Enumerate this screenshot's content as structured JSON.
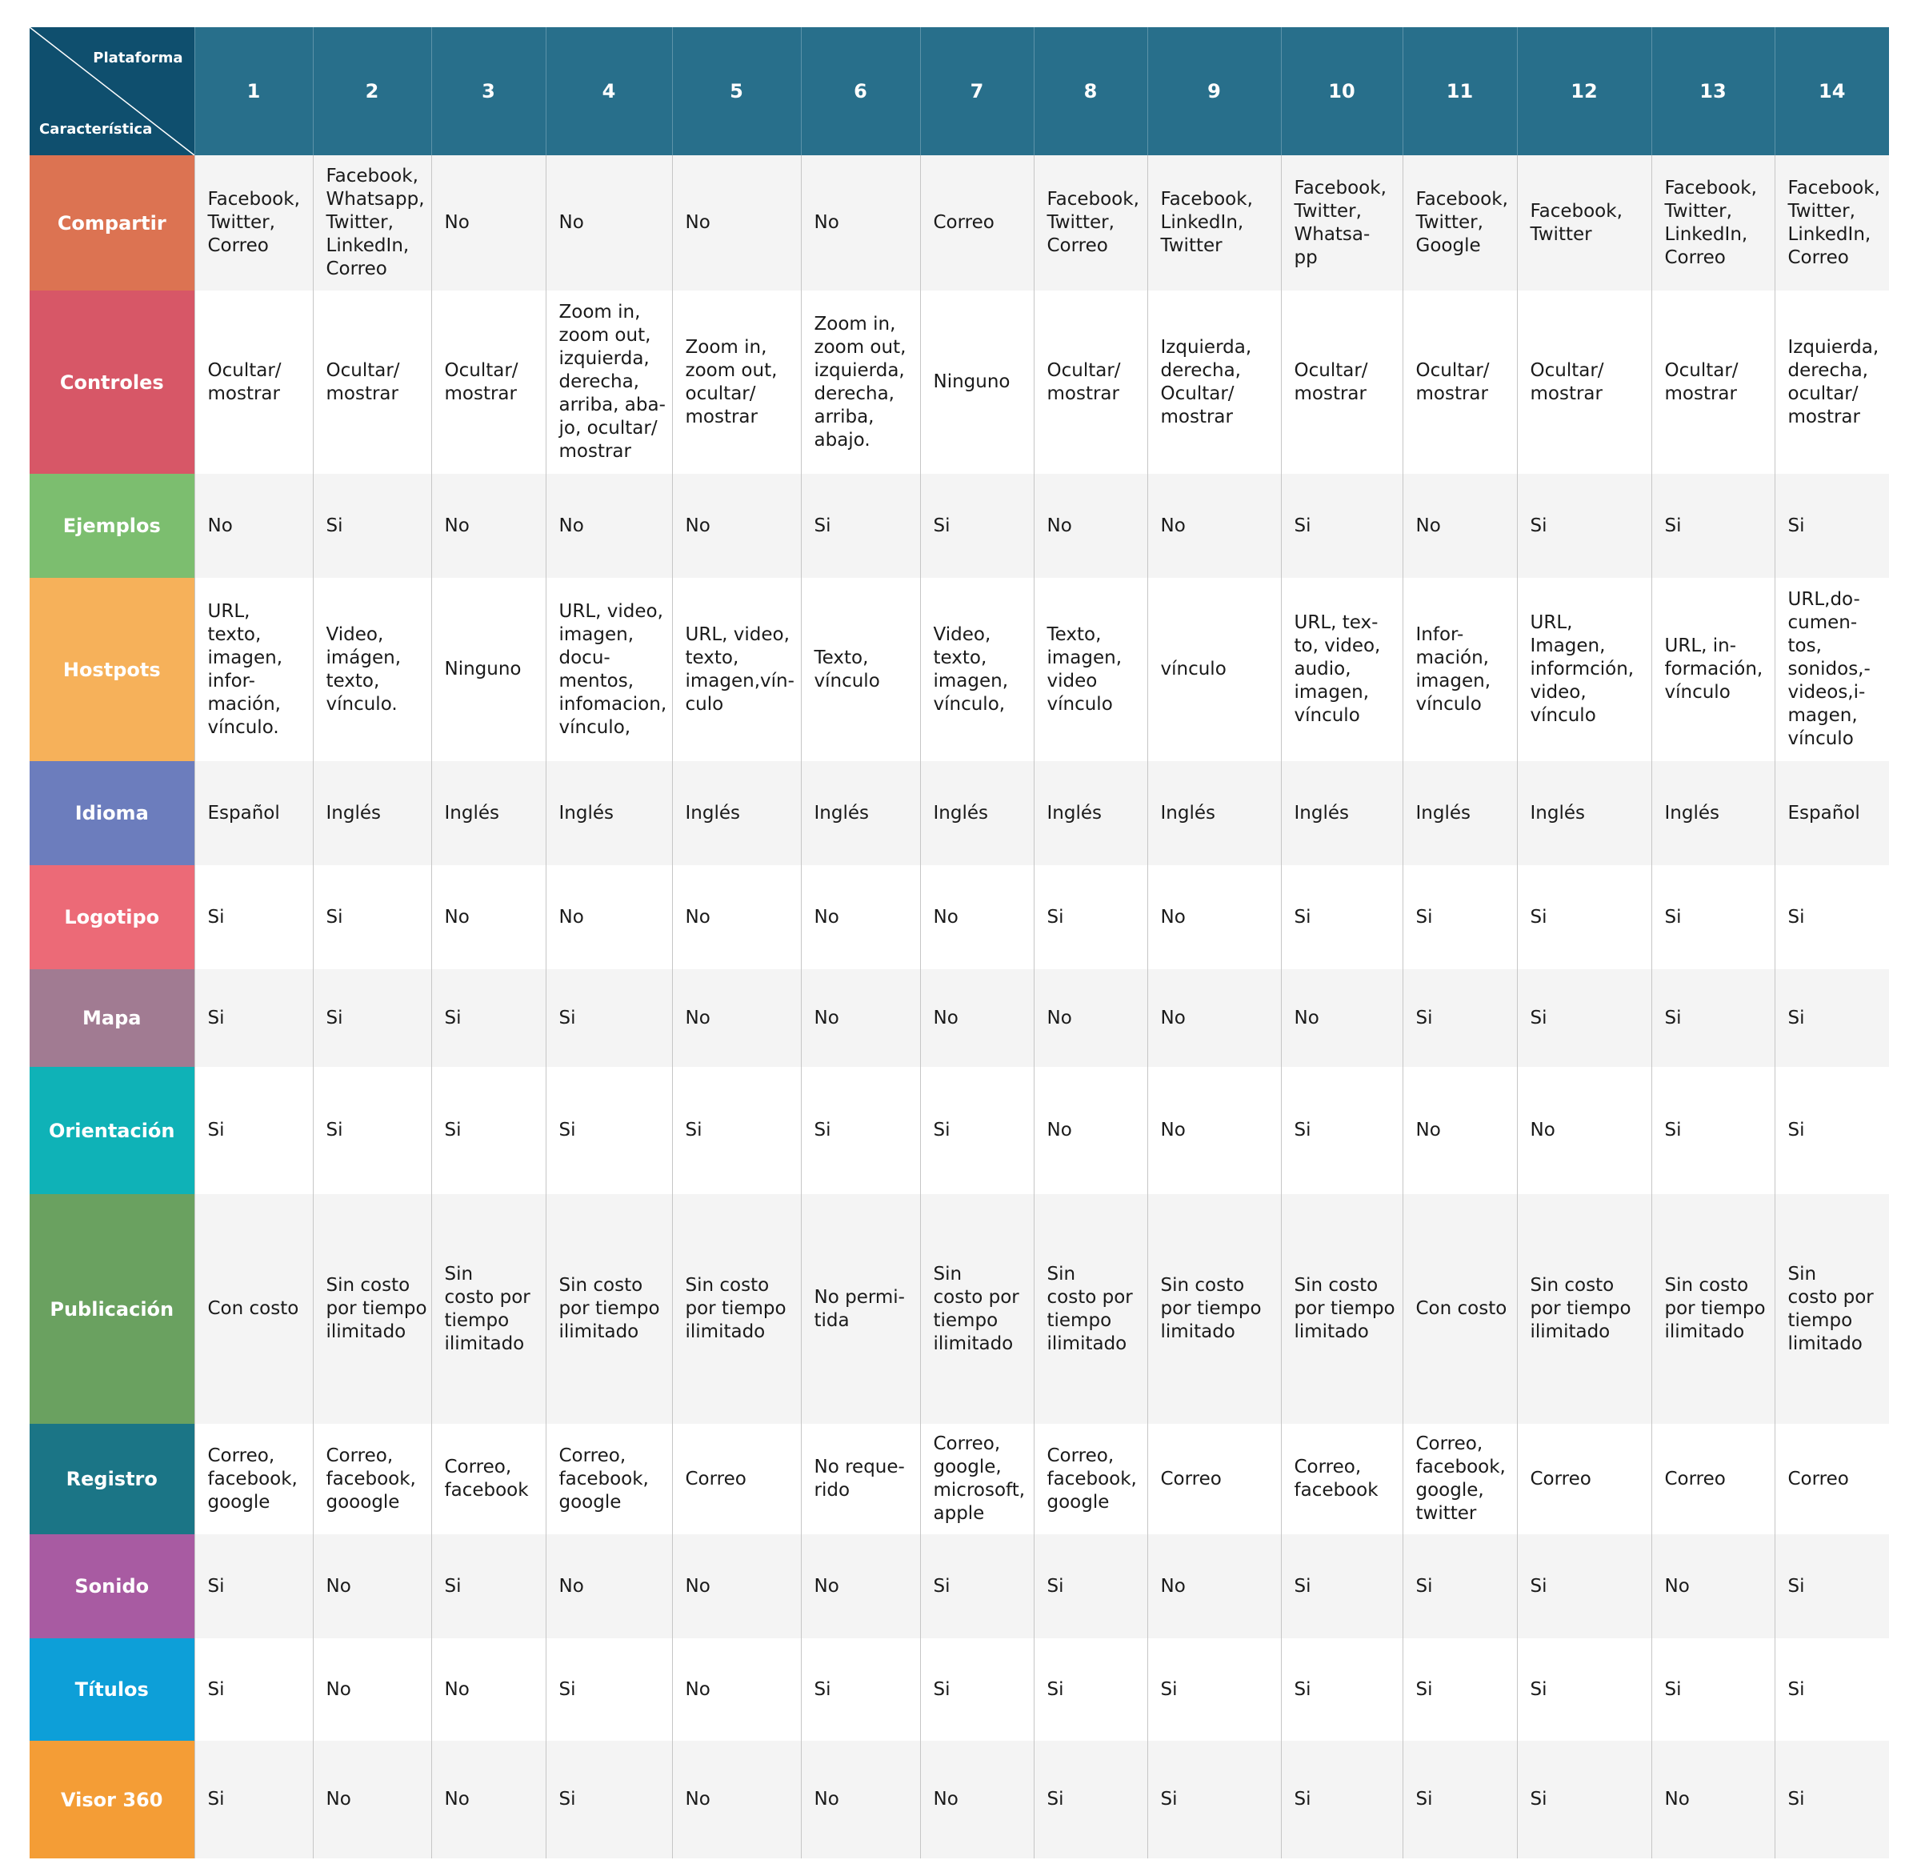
{
  "header": {
    "corner_top": "Plataforma",
    "corner_bottom": "Característica",
    "columns": [
      "1",
      "2",
      "3",
      "4",
      "5",
      "6",
      "7",
      "8",
      "9",
      "10",
      "11",
      "12",
      "13",
      "14"
    ]
  },
  "colors": {
    "header_bg": "#286f8b",
    "corner_bg": "#0f4f6e",
    "row_alt_bg": "#f4f4f4"
  },
  "rows": [
    {
      "label": "Compartir",
      "color": "#dc7352",
      "cells": [
        "Facebook,\nTwitter,\nCorreo",
        "Facebook,\nWhatsapp,\nTwitter,\nLinkedIn,\nCorreo",
        "No",
        "No",
        "No",
        "No",
        "Correo",
        "Facebook,\nTwitter,\nCorreo",
        "Facebook,\nLinkedIn,\nTwitter",
        "Facebook,\nTwitter,\nWhatsa-\npp",
        "Facebook,\nTwitter,\nGoogle",
        "Facebook,\nTwitter",
        "Facebook,\nTwitter,\nLinkedIn,\nCorreo",
        "Facebook,\nTwitter,\nLinkedIn,\nCorreo"
      ]
    },
    {
      "label": "Controles",
      "color": "#d75767",
      "cells": [
        "Ocultar/\nmostrar",
        "Ocultar/\nmostrar",
        "Ocultar/\nmostrar",
        "Zoom in,\nzoom out,\nizquierda,\nderecha,\narriba, aba-\njo, ocultar/\nmostrar",
        "Zoom in,\nzoom out,\nocultar/\nmostrar",
        "Zoom in,\nzoom out,\nizquierda,\nderecha,\narriba,\nabajo.",
        "Ninguno",
        "Ocultar/\nmostrar",
        "Izquierda,\nderecha,\nOcultar/\nmostrar",
        "Ocultar/\nmostrar",
        "Ocultar/\nmostrar",
        "Ocultar/\nmostrar",
        "Ocultar/\nmostrar",
        "Izquierda,\nderecha,\nocultar/\nmostrar"
      ]
    },
    {
      "label": "Ejemplos",
      "color": "#7cbe6f",
      "cells": [
        "No",
        "Si",
        "No",
        "No",
        "No",
        "Si",
        "Si",
        "No",
        "No",
        "Si",
        "No",
        "Si",
        "Si",
        "Si"
      ]
    },
    {
      "label": "Hostpots",
      "color": "#f6b15a",
      "cells": [
        "URL,\ntexto,\nimagen,\ninfor-\nmación,\nvínculo.",
        "Video,\nimágen,\ntexto,\nvínculo.",
        "Ninguno",
        "URL, video,\nimagen,\ndocu-\nmentos,\ninfomacion,\nvínculo,",
        "URL, video,\ntexto,\nimagen,vín-\nculo",
        "Texto,\nvínculo",
        "Video,\ntexto,\nimagen,\nvínculo,",
        "Texto,\nimagen,\nvideo\nvínculo",
        "vínculo",
        "URL, tex-\nto, video,\naudio,\nimagen,\nvínculo",
        "Infor-\nmación,\nimagen,\nvínculo",
        "URL,\nImagen,\ninformción,\nvideo,\nvínculo",
        "URL, in-\nformación,\nvínculo",
        "URL,do-\ncumen-\ntos,\nsonidos,-\nvideos,i-\nmagen,\nvínculo"
      ]
    },
    {
      "label": "Idioma",
      "color": "#6c7dbd",
      "cells": [
        "Español",
        "Inglés",
        "Inglés",
        "Inglés",
        "Inglés",
        "Inglés",
        "Inglés",
        "Inglés",
        "Inglés",
        "Inglés",
        "Inglés",
        "Inglés",
        "Inglés",
        "Español"
      ]
    },
    {
      "label": "Logotipo",
      "color": "#ec6a77",
      "cells": [
        "Si",
        "Si",
        "No",
        "No",
        "No",
        "No",
        "No",
        "Si",
        "No",
        "Si",
        "Si",
        "Si",
        "Si",
        "Si"
      ]
    },
    {
      "label": "Mapa",
      "color": "#a17b92",
      "cells": [
        "Si",
        "Si",
        "Si",
        "Si",
        "No",
        "No",
        "No",
        "No",
        "No",
        "No",
        "Si",
        "Si",
        "Si",
        "Si"
      ]
    },
    {
      "label": "Orientación",
      "color": "#0fb2b7",
      "cells": [
        "Si",
        "Si",
        "Si",
        "Si",
        "Si",
        "Si",
        "Si",
        "No",
        "No",
        "Si",
        "No",
        "No",
        "Si",
        "Si"
      ]
    },
    {
      "label": "Publicación",
      "color": "#6aa160",
      "cells": [
        "Con costo",
        "Sin costo\npor tiempo\nilimitado",
        "Sin\ncosto por\ntiempo\nilimitado",
        "Sin costo\npor tiempo\nilimitado",
        "Sin costo\npor tiempo\nilimitado",
        "No permi-\ntida",
        "Sin\ncosto por\ntiempo\nilimitado",
        "Sin\ncosto por\ntiempo\nilimitado",
        "Sin costo\npor tiempo\nlimitado",
        "Sin costo\npor tiempo\nlimitado",
        "Con costo",
        "Sin costo\npor tiempo\nilimitado",
        "Sin costo\npor tiempo\nilimitado",
        "Sin\ncosto por\ntiempo\nlimitado"
      ]
    },
    {
      "label": "Registro",
      "color": "#1b7586",
      "cells": [
        "Correo,\nfacebook,\ngoogle",
        "Correo,\nfacebook,\ngooogle",
        "Correo,\nfacebook",
        "Correo,\nfacebook,\ngoogle",
        "Correo",
        "No reque-\nrido",
        "Correo,\ngoogle,\nmicrosoft,\napple",
        "Correo,\nfacebook,\ngoogle",
        "Correo",
        "Correo,\nfacebook",
        "Correo,\nfacebook,\ngoogle,\ntwitter",
        "Correo",
        "Correo",
        "Correo"
      ]
    },
    {
      "label": "Sonido",
      "color": "#a85ba2",
      "cells": [
        "Si",
        "No",
        "Si",
        "No",
        "No",
        "No",
        "Si",
        "Si",
        "No",
        "Si",
        "Si",
        "Si",
        "No",
        "Si"
      ]
    },
    {
      "label": "Títulos",
      "color": "#0d9fd8",
      "cells": [
        "Si",
        "No",
        "No",
        "Si",
        "No",
        "Si",
        "Si",
        "Si",
        "Si",
        "Si",
        "Si",
        "Si",
        "Si",
        "Si"
      ]
    },
    {
      "label": "Visor 360",
      "color": "#f49d36",
      "cells": [
        "Si",
        "No",
        "No",
        "Si",
        "No",
        "No",
        "No",
        "Si",
        "Si",
        "Si",
        "Si",
        "Si",
        "No",
        "Si"
      ]
    }
  ]
}
